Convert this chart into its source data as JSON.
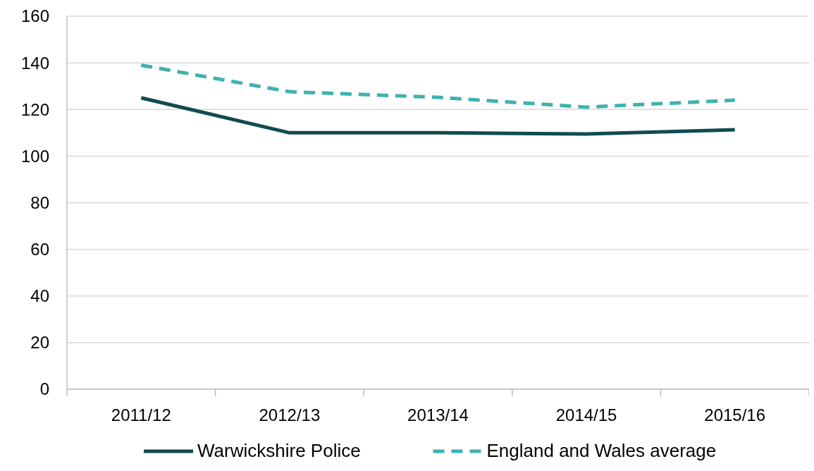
{
  "chart_data": {
    "type": "line",
    "categories": [
      "2011/12",
      "2012/13",
      "2013/14",
      "2014/15",
      "2015/16"
    ],
    "series": [
      {
        "name": "Warwickshire Police",
        "color": "#0f4c50",
        "values": [
          125,
          110,
          110,
          109.5,
          111.3
        ],
        "line_style": "solid"
      },
      {
        "name": "England and Wales average",
        "color": "#3fb1b0",
        "values": [
          139,
          127.6,
          125.2,
          121,
          124
        ],
        "line_style": "dashed"
      }
    ],
    "ylim": [
      0,
      160
    ],
    "yticks": [
      0,
      20,
      40,
      60,
      80,
      100,
      120,
      140,
      160
    ],
    "grid": "y",
    "legend": "bottom",
    "marker": "none"
  }
}
